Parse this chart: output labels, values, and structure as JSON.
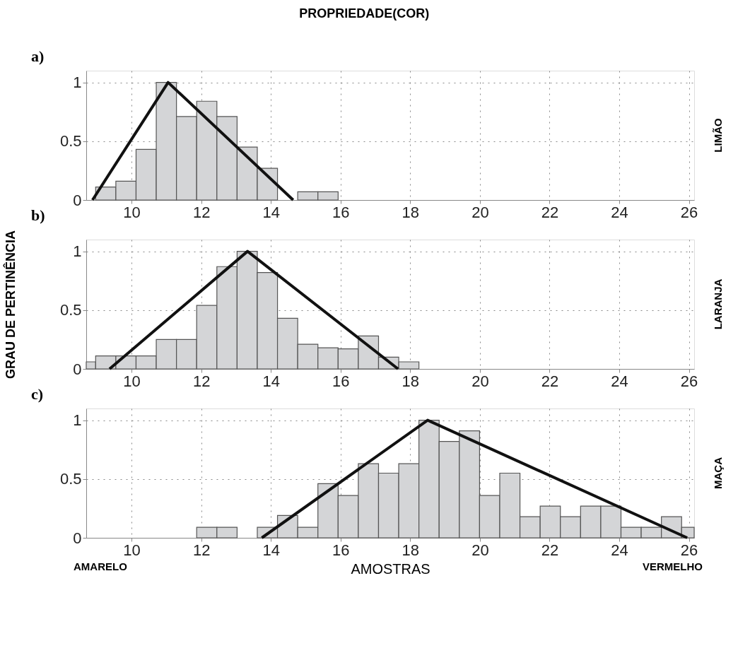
{
  "chart_data": [
    {
      "type": "histogram",
      "title": "PROPRIEDADE(COR)",
      "subtitle": "a)",
      "y2label": "LIMÃO",
      "color": "#d4d5d7",
      "bins": [
        8.97,
        9.55,
        10.13,
        10.71,
        11.29,
        11.87,
        12.45,
        13.03,
        13.61,
        14.19,
        14.77,
        15.35,
        15.93
      ],
      "values": [
        0.11,
        0.16,
        0.43,
        1.0,
        0.71,
        0.84,
        0.71,
        0.45,
        0.27,
        0,
        0.07,
        0.07
      ],
      "series": [
        {
          "type": "line",
          "color": "#111111",
          "x": [
            8.88,
            11.05,
            14.64
          ],
          "values": [
            0,
            1,
            0
          ]
        }
      ],
      "xlim": [
        8.7,
        26.15
      ],
      "ylim": [
        0,
        1.1
      ],
      "xticks": [
        10,
        12,
        14,
        16,
        18,
        20,
        22,
        24,
        26
      ],
      "yticks": [
        0,
        0.5,
        1
      ],
      "grid": true
    },
    {
      "type": "histogram",
      "subtitle": "b)",
      "ylabel": "GRAU DE PERTINÊNCIA",
      "y2label": "LARANJA",
      "color": "#d4d5d7",
      "bins": [
        8.7,
        8.97,
        9.55,
        10.13,
        10.71,
        11.29,
        11.87,
        12.45,
        13.03,
        13.61,
        14.19,
        14.77,
        15.35,
        15.93,
        16.51,
        17.09,
        17.67,
        18.25
      ],
      "values": [
        0.06,
        0.11,
        0.11,
        0.11,
        0.25,
        0.25,
        0.54,
        0.87,
        1.0,
        0.82,
        0.43,
        0.21,
        0.18,
        0.17,
        0.28,
        0.1,
        0.06
      ],
      "series": [
        {
          "type": "line",
          "color": "#111111",
          "x": [
            9.37,
            13.33,
            17.65
          ],
          "values": [
            0,
            1,
            0
          ]
        }
      ],
      "xlim": [
        8.7,
        26.15
      ],
      "ylim": [
        0,
        1.1
      ],
      "xticks": [
        10,
        12,
        14,
        16,
        18,
        20,
        22,
        24,
        26
      ],
      "yticks": [
        0,
        0.5,
        1
      ],
      "grid": true
    },
    {
      "type": "histogram",
      "subtitle": "c)",
      "xlabel": "AMOSTRAS",
      "y2label": "MAÇA",
      "color": "#d4d5d7",
      "bins": [
        11.87,
        12.45,
        13.03,
        13.61,
        14.19,
        14.77,
        15.35,
        15.93,
        16.51,
        17.09,
        17.67,
        18.25,
        18.83,
        19.41,
        19.99,
        20.57,
        21.15,
        21.73,
        22.31,
        22.89,
        23.47,
        24.05,
        24.63,
        25.21,
        25.79,
        26.15
      ],
      "values": [
        0.09,
        0.09,
        0,
        0.09,
        0.19,
        0.09,
        0.46,
        0.36,
        0.63,
        0.55,
        0.63,
        1.0,
        0.82,
        0.91,
        0.36,
        0.55,
        0.18,
        0.27,
        0.18,
        0.27,
        0.27,
        0.09,
        0.09,
        0.18,
        0.09
      ],
      "series": [
        {
          "type": "line",
          "color": "#111111",
          "x": [
            13.74,
            18.5,
            25.95
          ],
          "values": [
            0,
            1,
            0
          ]
        }
      ],
      "annotations": [
        "AMARELO",
        "VERMELHO"
      ],
      "xlim": [
        8.7,
        26.15
      ],
      "ylim": [
        0,
        1.1
      ],
      "xticks": [
        10,
        12,
        14,
        16,
        18,
        20,
        22,
        24,
        26
      ],
      "yticks": [
        0,
        0.5,
        1
      ],
      "grid": true
    }
  ]
}
